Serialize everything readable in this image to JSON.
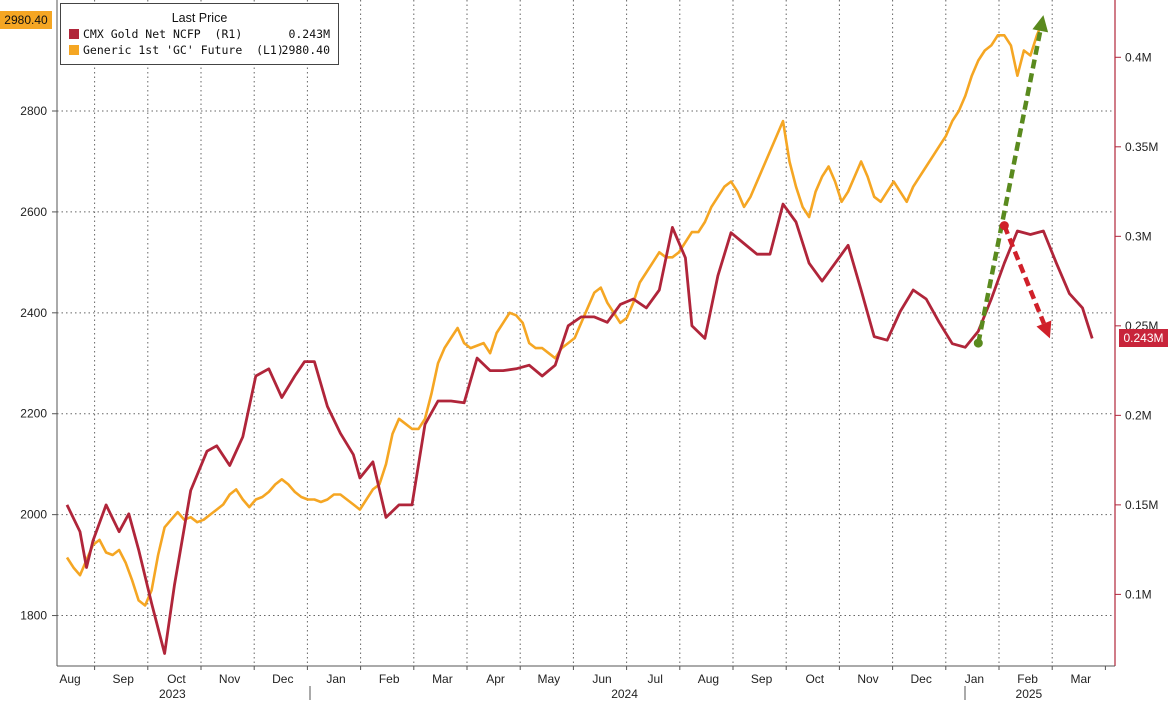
{
  "chart_data": {
    "type": "line",
    "title": "",
    "xlabel": "",
    "legend": {
      "title": "Last Price",
      "placement": "top-left",
      "entries": [
        {
          "label": "CMX Gold Net NCFP  (R1)",
          "value": "0.243M",
          "color": "#b0253a"
        },
        {
          "label": "Generic 1st 'GC' Future  (L1)",
          "value": "2980.40",
          "color": "#f5a623"
        }
      ]
    },
    "x_months": [
      "Aug",
      "Sep",
      "Oct",
      "Nov",
      "Dec",
      "Jan",
      "Feb",
      "Mar",
      "Apr",
      "May",
      "Jun",
      "Jul",
      "Aug",
      "Sep",
      "Oct",
      "Nov",
      "Dec",
      "Jan",
      "Feb",
      "Mar"
    ],
    "x_years": [
      {
        "label": "2023",
        "month_index": 2.3
      },
      {
        "label": "2024",
        "month_index": 10.8
      },
      {
        "label": "2025",
        "month_index": 18.4
      }
    ],
    "left_axis": {
      "ticks": [
        "1800",
        "2000",
        "2200",
        "2400",
        "2600",
        "2800"
      ],
      "range": [
        1700,
        3020
      ],
      "series": "Generic 1st 'GC' Future"
    },
    "right_axis": {
      "ticks": [
        "0.1M",
        "0.15M",
        "0.2M",
        "0.25M",
        "0.3M",
        "0.35M",
        "0.4M"
      ],
      "range": [
        0.06,
        0.432
      ],
      "series": "CMX Gold Net NCFP"
    },
    "grid": true,
    "series": [
      {
        "name": "Generic 1st 'GC' Future",
        "axis": "left",
        "color": "#f5a623",
        "points": [
          [
            0.0,
            1915
          ],
          [
            0.2,
            1895
          ],
          [
            0.4,
            1880
          ],
          [
            0.6,
            1910
          ],
          [
            0.8,
            1940
          ],
          [
            1.0,
            1950
          ],
          [
            1.2,
            1925
          ],
          [
            1.4,
            1920
          ],
          [
            1.6,
            1930
          ],
          [
            1.8,
            1905
          ],
          [
            2.0,
            1870
          ],
          [
            2.2,
            1830
          ],
          [
            2.4,
            1820
          ],
          [
            2.6,
            1850
          ],
          [
            2.8,
            1920
          ],
          [
            3.0,
            1975
          ],
          [
            3.2,
            1990
          ],
          [
            3.4,
            2005
          ],
          [
            3.6,
            1990
          ],
          [
            3.8,
            1995
          ],
          [
            4.0,
            1985
          ],
          [
            4.2,
            1990
          ],
          [
            4.4,
            2000
          ],
          [
            4.6,
            2010
          ],
          [
            4.8,
            2020
          ],
          [
            5.0,
            2040
          ],
          [
            5.2,
            2050
          ],
          [
            5.4,
            2030
          ],
          [
            5.6,
            2015
          ],
          [
            5.8,
            2030
          ],
          [
            6.0,
            2035
          ],
          [
            6.2,
            2045
          ],
          [
            6.4,
            2060
          ],
          [
            6.6,
            2070
          ],
          [
            6.8,
            2060
          ],
          [
            7.0,
            2045
          ],
          [
            7.2,
            2035
          ],
          [
            7.4,
            2030
          ],
          [
            7.6,
            2030
          ],
          [
            7.8,
            2025
          ],
          [
            8.0,
            2030
          ],
          [
            8.2,
            2040
          ],
          [
            8.4,
            2040
          ],
          [
            8.6,
            2030
          ],
          [
            8.8,
            2020
          ],
          [
            9.0,
            2010
          ],
          [
            9.2,
            2030
          ],
          [
            9.4,
            2050
          ],
          [
            9.6,
            2060
          ],
          [
            9.8,
            2100
          ],
          [
            10.0,
            2160
          ],
          [
            10.2,
            2190
          ],
          [
            10.4,
            2180
          ],
          [
            10.6,
            2170
          ],
          [
            10.8,
            2170
          ],
          [
            11.0,
            2190
          ],
          [
            11.2,
            2240
          ],
          [
            11.4,
            2300
          ],
          [
            11.6,
            2330
          ],
          [
            11.8,
            2350
          ],
          [
            12.0,
            2370
          ],
          [
            12.2,
            2340
          ],
          [
            12.4,
            2330
          ],
          [
            12.6,
            2335
          ],
          [
            12.8,
            2340
          ],
          [
            13.0,
            2320
          ],
          [
            13.2,
            2360
          ],
          [
            13.4,
            2380
          ],
          [
            13.6,
            2400
          ],
          [
            13.8,
            2395
          ],
          [
            14.0,
            2380
          ],
          [
            14.2,
            2340
          ],
          [
            14.4,
            2330
          ],
          [
            14.6,
            2330
          ],
          [
            14.8,
            2320
          ],
          [
            15.0,
            2310
          ],
          [
            15.2,
            2330
          ],
          [
            15.4,
            2340
          ],
          [
            15.6,
            2350
          ],
          [
            15.8,
            2380
          ],
          [
            16.0,
            2410
          ],
          [
            16.2,
            2440
          ],
          [
            16.4,
            2450
          ],
          [
            16.6,
            2420
          ],
          [
            16.8,
            2400
          ],
          [
            17.0,
            2380
          ],
          [
            17.2,
            2390
          ],
          [
            17.4,
            2420
          ],
          [
            17.6,
            2460
          ],
          [
            17.8,
            2480
          ],
          [
            18.0,
            2500
          ],
          [
            18.2,
            2520
          ],
          [
            18.4,
            2510
          ],
          [
            18.6,
            2510
          ],
          [
            18.8,
            2520
          ],
          [
            19.0,
            2540
          ],
          [
            19.2,
            2560
          ],
          [
            19.4,
            2560
          ],
          [
            19.6,
            2580
          ],
          [
            19.8,
            2610
          ],
          [
            20.0,
            2630
          ],
          [
            20.2,
            2650
          ],
          [
            20.4,
            2660
          ],
          [
            20.6,
            2640
          ],
          [
            20.8,
            2610
          ],
          [
            21.0,
            2630
          ],
          [
            21.2,
            2660
          ],
          [
            21.4,
            2690
          ],
          [
            21.6,
            2720
          ],
          [
            21.8,
            2750
          ],
          [
            22.0,
            2780
          ],
          [
            22.2,
            2700
          ],
          [
            22.4,
            2650
          ],
          [
            22.6,
            2610
          ],
          [
            22.8,
            2590
          ],
          [
            23.0,
            2640
          ],
          [
            23.2,
            2670
          ],
          [
            23.4,
            2690
          ],
          [
            23.6,
            2660
          ],
          [
            23.8,
            2620
          ],
          [
            24.0,
            2640
          ],
          [
            24.2,
            2670
          ],
          [
            24.4,
            2700
          ],
          [
            24.6,
            2670
          ],
          [
            24.8,
            2630
          ],
          [
            25.0,
            2620
          ],
          [
            25.2,
            2640
          ],
          [
            25.4,
            2660
          ],
          [
            25.6,
            2640
          ],
          [
            25.8,
            2620
          ],
          [
            26.0,
            2650
          ],
          [
            26.2,
            2670
          ],
          [
            26.4,
            2690
          ],
          [
            26.6,
            2710
          ],
          [
            26.8,
            2730
          ],
          [
            27.0,
            2750
          ],
          [
            27.2,
            2780
          ],
          [
            27.4,
            2800
          ],
          [
            27.6,
            2830
          ],
          [
            27.8,
            2870
          ],
          [
            28.0,
            2900
          ],
          [
            28.2,
            2920
          ],
          [
            28.4,
            2930
          ],
          [
            28.6,
            2950
          ],
          [
            28.8,
            2950
          ],
          [
            29.0,
            2930
          ],
          [
            29.2,
            2870
          ],
          [
            29.4,
            2920
          ],
          [
            29.6,
            2910
          ],
          [
            29.8,
            2950
          ],
          [
            30.0,
            2980.4
          ]
        ]
      },
      {
        "name": "CMX Gold Net NCFP",
        "axis": "right",
        "color": "#b0253a",
        "points": [
          [
            0.0,
            0.15
          ],
          [
            0.4,
            0.135
          ],
          [
            0.6,
            0.115
          ],
          [
            0.8,
            0.13
          ],
          [
            1.2,
            0.15
          ],
          [
            1.6,
            0.135
          ],
          [
            1.9,
            0.145
          ],
          [
            2.2,
            0.125
          ],
          [
            2.6,
            0.095
          ],
          [
            3.0,
            0.067
          ],
          [
            3.3,
            0.105
          ],
          [
            3.8,
            0.158
          ],
          [
            4.3,
            0.18
          ],
          [
            4.6,
            0.183
          ],
          [
            5.0,
            0.172
          ],
          [
            5.4,
            0.188
          ],
          [
            5.8,
            0.222
          ],
          [
            6.2,
            0.226
          ],
          [
            6.6,
            0.21
          ],
          [
            7.0,
            0.222
          ],
          [
            7.3,
            0.23
          ],
          [
            7.6,
            0.23
          ],
          [
            8.0,
            0.205
          ],
          [
            8.4,
            0.19
          ],
          [
            8.8,
            0.178
          ],
          [
            9.0,
            0.165
          ],
          [
            9.4,
            0.174
          ],
          [
            9.8,
            0.143
          ],
          [
            10.2,
            0.15
          ],
          [
            10.6,
            0.15
          ],
          [
            11.0,
            0.195
          ],
          [
            11.4,
            0.208
          ],
          [
            11.8,
            0.208
          ],
          [
            12.2,
            0.207
          ],
          [
            12.6,
            0.232
          ],
          [
            13.0,
            0.225
          ],
          [
            13.4,
            0.225
          ],
          [
            13.8,
            0.226
          ],
          [
            14.2,
            0.228
          ],
          [
            14.6,
            0.222
          ],
          [
            15.0,
            0.228
          ],
          [
            15.4,
            0.25
          ],
          [
            15.8,
            0.255
          ],
          [
            16.2,
            0.255
          ],
          [
            16.6,
            0.252
          ],
          [
            17.0,
            0.262
          ],
          [
            17.4,
            0.265
          ],
          [
            17.8,
            0.26
          ],
          [
            18.2,
            0.27
          ],
          [
            18.6,
            0.305
          ],
          [
            19.0,
            0.288
          ],
          [
            19.2,
            0.25
          ],
          [
            19.6,
            0.243
          ],
          [
            20.0,
            0.278
          ],
          [
            20.4,
            0.302
          ],
          [
            20.8,
            0.296
          ],
          [
            21.2,
            0.29
          ],
          [
            21.6,
            0.29
          ],
          [
            22.0,
            0.318
          ],
          [
            22.4,
            0.308
          ],
          [
            22.8,
            0.285
          ],
          [
            23.2,
            0.275
          ],
          [
            23.6,
            0.285
          ],
          [
            24.0,
            0.295
          ],
          [
            24.4,
            0.27
          ],
          [
            24.8,
            0.244
          ],
          [
            25.2,
            0.242
          ],
          [
            25.6,
            0.258
          ],
          [
            26.0,
            0.27
          ],
          [
            26.4,
            0.265
          ],
          [
            26.8,
            0.252
          ],
          [
            27.2,
            0.24
          ],
          [
            27.6,
            0.238
          ],
          [
            28.0,
            0.247
          ],
          [
            28.4,
            0.265
          ],
          [
            28.8,
            0.285
          ],
          [
            29.2,
            0.303
          ],
          [
            29.6,
            0.301
          ],
          [
            30.0,
            0.303
          ],
          [
            30.4,
            0.285
          ],
          [
            30.8,
            0.268
          ],
          [
            31.2,
            0.26
          ],
          [
            31.5,
            0.243
          ]
        ]
      }
    ],
    "annotations": [
      {
        "type": "arrow",
        "color": "#5a8a1e",
        "from": [
          28.0,
          2340
        ],
        "to": [
          30.0,
          2990
        ],
        "axis": "left"
      },
      {
        "type": "arrow",
        "color": "#d0202a",
        "from": [
          28.8,
          0.306
        ],
        "to": [
          30.2,
          0.243
        ],
        "axis": "right"
      }
    ],
    "last_value_badges": {
      "left": {
        "text": "2980.40",
        "color": "#f5a623",
        "value": 2980.4
      },
      "right": {
        "text": "0.243M",
        "color": "#c8243a",
        "value": 0.243
      }
    }
  }
}
